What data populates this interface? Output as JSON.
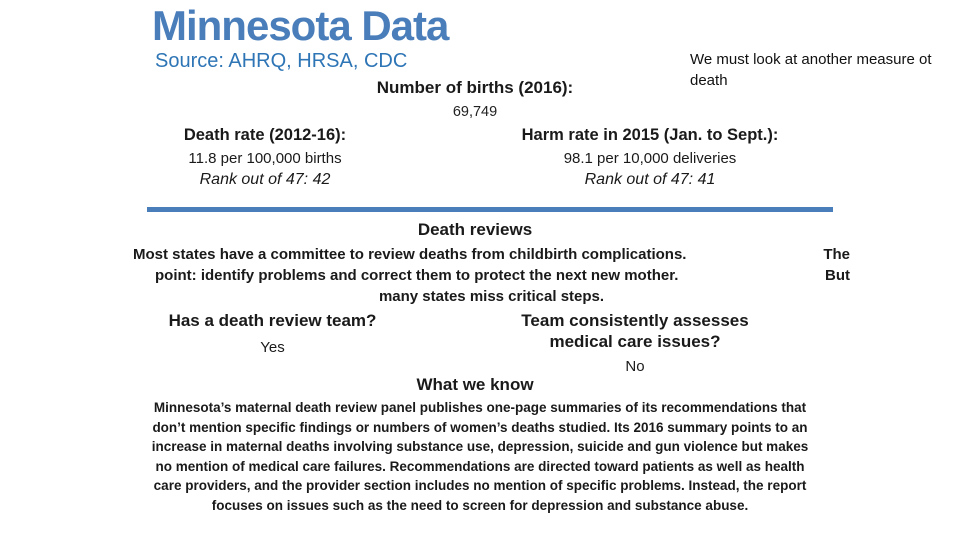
{
  "slide": {
    "title": "Minnesota Data",
    "source": "Source: AHRQ, HRSA, CDC",
    "top_note": {
      "line1": "We must look at another measure ot",
      "line2": "death"
    },
    "births": {
      "label": "Number of births (2016):",
      "value": "69,749"
    },
    "stats": [
      {
        "label": "Death rate (2012-16):",
        "value": "11.8 per 100,000 births",
        "rank": "Rank out of 47: 42"
      },
      {
        "label": "Harm rate in 2015 (Jan. to Sept.):",
        "value": "98.1 per 10,000 deliveries",
        "rank": "Rank out of 47: 41"
      }
    ],
    "death_reviews": {
      "heading": "Death reviews",
      "line1_main": "Most states have a committee to review deaths from childbirth complications.",
      "line1_end": "The",
      "line2_main": "point: identify problems and correct them to protect the next new mother.",
      "line2_end": "But",
      "line3": "many states miss critical steps."
    },
    "qa": {
      "left": {
        "question": "Has a death review team?",
        "answer": "Yes"
      },
      "right": {
        "question_line1": "Team consistently assesses",
        "question_line2": "medical care issues?",
        "answer": "No"
      }
    },
    "what_we_know": {
      "heading": "What we know",
      "lines": [
        "Minnesota’s maternal death review panel publishes one-page summaries of its recommendations that",
        "don’t mention specific findings or numbers of women’s deaths studied. Its 2016 summary points to an",
        "increase in maternal deaths involving substance use, depression, suicide and gun violence but makes",
        "no mention of medical care failures. Recommendations are directed toward patients as well as health",
        "care providers, and the provider section includes no mention of specific problems. Instead, the report",
        "focuses on issues such as the need to screen for depression and substance abuse."
      ]
    },
    "colors": {
      "title_blue": "#4a7ebb",
      "source_blue": "#2e75b6",
      "divider_blue": "#4a7ebb",
      "body_text": "#1a1a1a"
    }
  }
}
